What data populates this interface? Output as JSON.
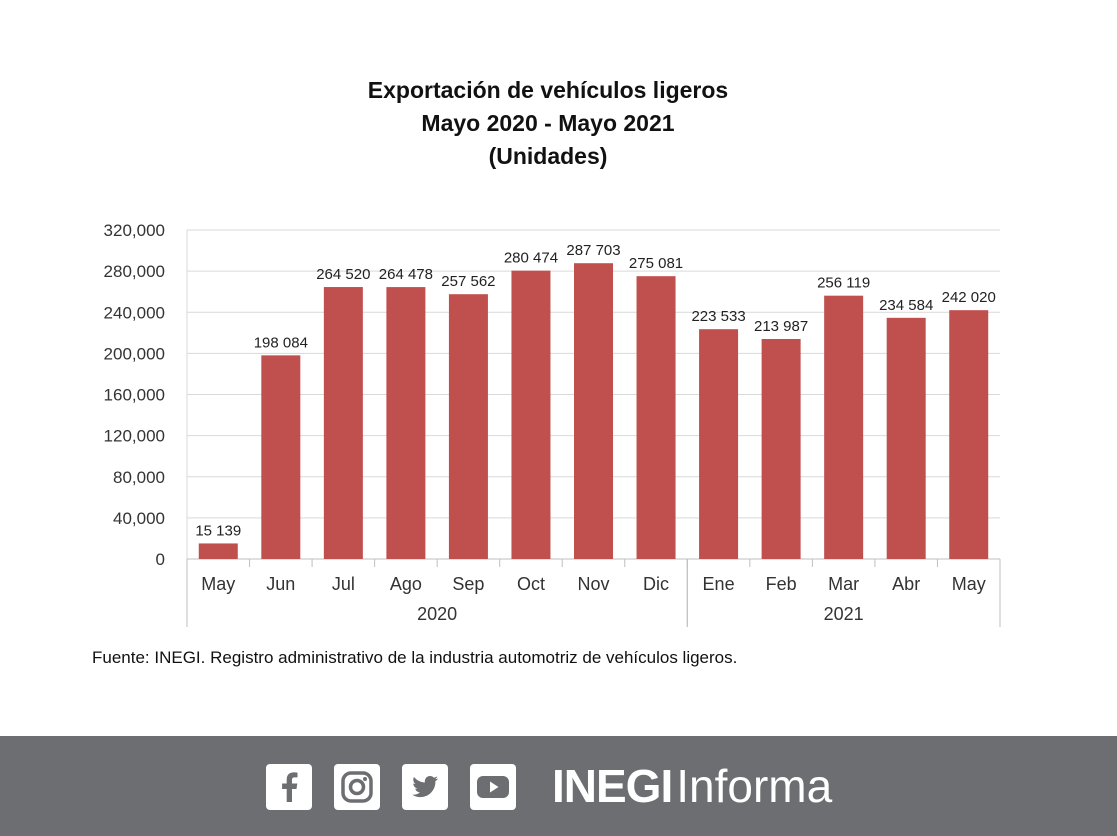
{
  "chart_data": {
    "type": "bar",
    "title_lines": [
      "Exportación de vehículos ligeros",
      "Mayo 2020 - Mayo 2021",
      "(Unidades)"
    ],
    "categories": [
      "May",
      "Jun",
      "Jul",
      "Ago",
      "Sep",
      "Oct",
      "Nov",
      "Dic",
      "Ene",
      "Feb",
      "Mar",
      "Abr",
      "May"
    ],
    "year_groups": [
      {
        "label": "2020",
        "start": 0,
        "end": 7
      },
      {
        "label": "2021",
        "start": 8,
        "end": 12
      }
    ],
    "values": [
      15139,
      198084,
      264520,
      264478,
      257562,
      280474,
      287703,
      275081,
      223533,
      213987,
      256119,
      234584,
      242020
    ],
    "value_labels": [
      "15 139",
      "198 084",
      "264 520",
      "264 478",
      "257 562",
      "280 474",
      "287 703",
      "275 081",
      "223 533",
      "213 987",
      "256 119",
      "234 584",
      "242 020"
    ],
    "ylim": [
      0,
      320000
    ],
    "yticks": [
      0,
      40000,
      80000,
      120000,
      160000,
      200000,
      240000,
      280000,
      320000
    ],
    "ytick_labels": [
      "0",
      "40,000",
      "80,000",
      "120,000",
      "160,000",
      "200,000",
      "240,000",
      "280,000",
      "320,000"
    ],
    "bar_color": "#c0504d",
    "grid": "horizontal",
    "xlabel": "",
    "ylabel": ""
  },
  "source_text": "Fuente: INEGI. Registro administrativo de la industria automotriz de vehículos ligeros.",
  "footer": {
    "background": "#6d6e71",
    "social_icons": [
      "facebook-icon",
      "instagram-icon",
      "twitter-icon",
      "youtube-icon"
    ],
    "brand_strong": "INEGI",
    "brand_light": "Informa"
  }
}
